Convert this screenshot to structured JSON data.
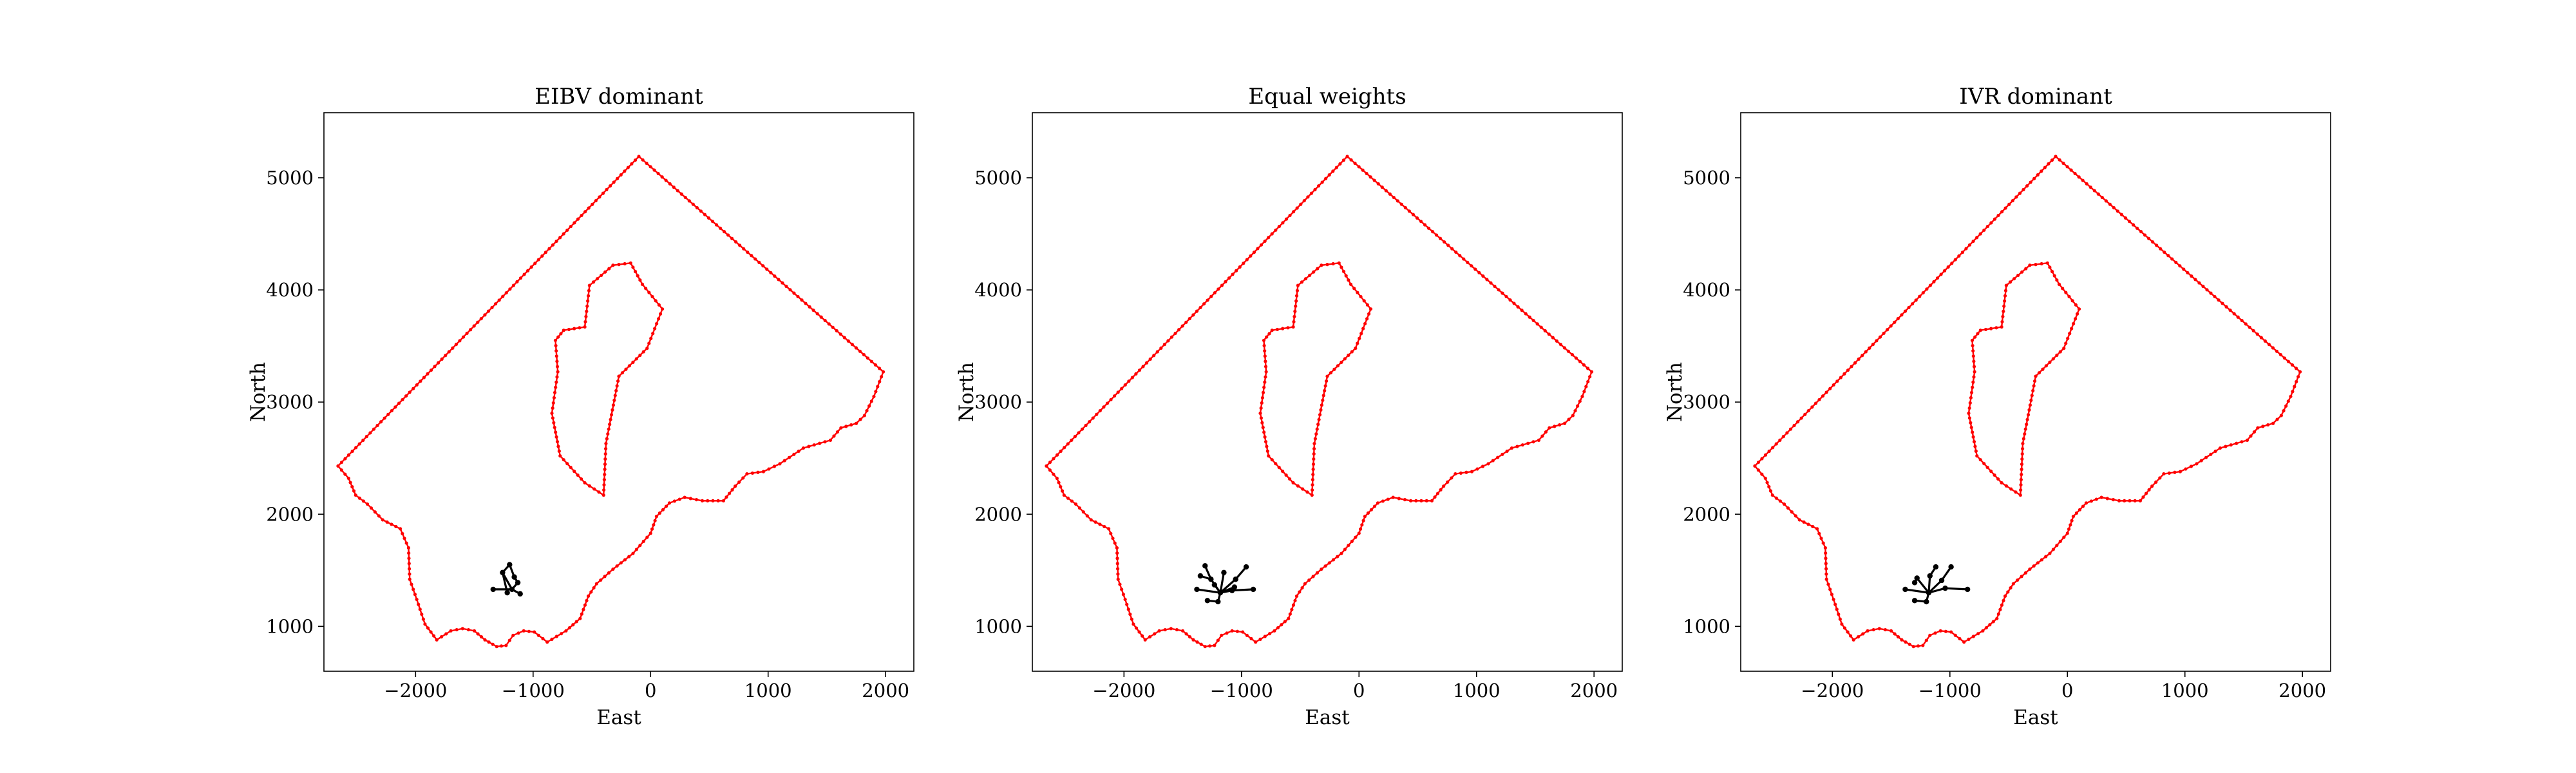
{
  "chart_data": [
    {
      "type": "scatter",
      "title": "EIBV dominant",
      "xlabel": "East",
      "ylabel": "North",
      "xlim": [
        -2780,
        2240
      ],
      "ylim": [
        600,
        5580
      ],
      "xticks": [
        -2000,
        -1000,
        0,
        1000,
        2000
      ],
      "xtick_labels": [
        "−2000",
        "−1000",
        "0",
        "1000",
        "2000"
      ],
      "yticks": [
        1000,
        2000,
        3000,
        4000,
        5000
      ],
      "ytick_labels": [
        "1000",
        "2000",
        "3000",
        "4000",
        "5000"
      ],
      "grid": false,
      "boundary_color": "#ff0000",
      "tree_color": "#000000",
      "outer_boundary": [
        [
          -100,
          5190
        ],
        [
          1980,
          3270
        ],
        [
          1900,
          3050
        ],
        [
          1820,
          2880
        ],
        [
          1750,
          2810
        ],
        [
          1620,
          2770
        ],
        [
          1530,
          2660
        ],
        [
          1300,
          2590
        ],
        [
          1100,
          2450
        ],
        [
          960,
          2380
        ],
        [
          820,
          2360
        ],
        [
          720,
          2250
        ],
        [
          620,
          2120
        ],
        [
          440,
          2120
        ],
        [
          290,
          2150
        ],
        [
          160,
          2100
        ],
        [
          50,
          1980
        ],
        [
          0,
          1830
        ],
        [
          -150,
          1650
        ],
        [
          -320,
          1510
        ],
        [
          -460,
          1380
        ],
        [
          -530,
          1270
        ],
        [
          -600,
          1070
        ],
        [
          -720,
          960
        ],
        [
          -880,
          860
        ],
        [
          -990,
          950
        ],
        [
          -1080,
          960
        ],
        [
          -1170,
          920
        ],
        [
          -1230,
          830
        ],
        [
          -1310,
          820
        ],
        [
          -1410,
          880
        ],
        [
          -1500,
          960
        ],
        [
          -1600,
          980
        ],
        [
          -1700,
          960
        ],
        [
          -1820,
          880
        ],
        [
          -1920,
          1020
        ],
        [
          -1990,
          1240
        ],
        [
          -2050,
          1420
        ],
        [
          -2060,
          1700
        ],
        [
          -2130,
          1870
        ],
        [
          -2280,
          1950
        ],
        [
          -2410,
          2090
        ],
        [
          -2510,
          2170
        ],
        [
          -2570,
          2320
        ],
        [
          -2660,
          2430
        ],
        [
          -100,
          5190
        ]
      ],
      "inner_boundary": [
        [
          -520,
          4040
        ],
        [
          -320,
          4220
        ],
        [
          -170,
          4240
        ],
        [
          -70,
          4050
        ],
        [
          100,
          3830
        ],
        [
          -30,
          3480
        ],
        [
          -270,
          3230
        ],
        [
          -380,
          2630
        ],
        [
          -400,
          2170
        ],
        [
          -560,
          2280
        ],
        [
          -770,
          2520
        ],
        [
          -840,
          2900
        ],
        [
          -790,
          3270
        ],
        [
          -810,
          3550
        ],
        [
          -740,
          3640
        ],
        [
          -560,
          3670
        ],
        [
          -520,
          4040
        ]
      ],
      "tree_nodes": [
        [
          -1180,
          1330
        ],
        [
          -1260,
          1480
        ],
        [
          -1200,
          1550
        ],
        [
          -1130,
          1390
        ],
        [
          -1110,
          1290
        ],
        [
          -1340,
          1330
        ],
        [
          -1220,
          1300
        ],
        [
          -1160,
          1440
        ]
      ],
      "tree_edges": [
        [
          0,
          1
        ],
        [
          1,
          2
        ],
        [
          0,
          3
        ],
        [
          0,
          4
        ],
        [
          5,
          0
        ],
        [
          1,
          6
        ],
        [
          2,
          7
        ],
        [
          3,
          7
        ]
      ]
    },
    {
      "type": "scatter",
      "title": "Equal weights",
      "xlabel": "East",
      "ylabel": "North",
      "xlim": [
        -2780,
        2240
      ],
      "ylim": [
        600,
        5580
      ],
      "xticks": [
        -2000,
        -1000,
        0,
        1000,
        2000
      ],
      "xtick_labels": [
        "−2000",
        "−1000",
        "0",
        "1000",
        "2000"
      ],
      "yticks": [
        1000,
        2000,
        3000,
        4000,
        5000
      ],
      "ytick_labels": [
        "1000",
        "2000",
        "3000",
        "4000",
        "5000"
      ],
      "grid": false,
      "boundary_color": "#ff0000",
      "tree_color": "#000000",
      "outer_boundary": [
        [
          -100,
          5190
        ],
        [
          1980,
          3270
        ],
        [
          1900,
          3050
        ],
        [
          1820,
          2880
        ],
        [
          1750,
          2810
        ],
        [
          1620,
          2770
        ],
        [
          1530,
          2660
        ],
        [
          1300,
          2590
        ],
        [
          1100,
          2450
        ],
        [
          960,
          2380
        ],
        [
          820,
          2360
        ],
        [
          720,
          2250
        ],
        [
          620,
          2120
        ],
        [
          440,
          2120
        ],
        [
          290,
          2150
        ],
        [
          160,
          2100
        ],
        [
          50,
          1980
        ],
        [
          0,
          1830
        ],
        [
          -150,
          1650
        ],
        [
          -320,
          1510
        ],
        [
          -460,
          1380
        ],
        [
          -530,
          1270
        ],
        [
          -600,
          1070
        ],
        [
          -720,
          960
        ],
        [
          -880,
          860
        ],
        [
          -990,
          950
        ],
        [
          -1080,
          960
        ],
        [
          -1170,
          920
        ],
        [
          -1230,
          830
        ],
        [
          -1310,
          820
        ],
        [
          -1410,
          880
        ],
        [
          -1500,
          960
        ],
        [
          -1600,
          980
        ],
        [
          -1700,
          960
        ],
        [
          -1820,
          880
        ],
        [
          -1920,
          1020
        ],
        [
          -1990,
          1240
        ],
        [
          -2050,
          1420
        ],
        [
          -2060,
          1700
        ],
        [
          -2130,
          1870
        ],
        [
          -2280,
          1950
        ],
        [
          -2410,
          2090
        ],
        [
          -2510,
          2170
        ],
        [
          -2570,
          2320
        ],
        [
          -2660,
          2430
        ],
        [
          -100,
          5190
        ]
      ],
      "inner_boundary": [
        [
          -520,
          4040
        ],
        [
          -320,
          4220
        ],
        [
          -170,
          4240
        ],
        [
          -70,
          4050
        ],
        [
          100,
          3830
        ],
        [
          -30,
          3480
        ],
        [
          -270,
          3230
        ],
        [
          -380,
          2630
        ],
        [
          -400,
          2170
        ],
        [
          -560,
          2280
        ],
        [
          -770,
          2520
        ],
        [
          -840,
          2900
        ],
        [
          -790,
          3270
        ],
        [
          -810,
          3550
        ],
        [
          -740,
          3640
        ],
        [
          -560,
          3670
        ],
        [
          -520,
          4040
        ]
      ],
      "tree_nodes": [
        [
          -1180,
          1300
        ],
        [
          -1380,
          1330
        ],
        [
          -1150,
          1480
        ],
        [
          -1260,
          1420
        ],
        [
          -1050,
          1420
        ],
        [
          -1080,
          1320
        ],
        [
          -900,
          1330
        ],
        [
          -1200,
          1220
        ],
        [
          -1290,
          1230
        ],
        [
          -1350,
          1450
        ],
        [
          -1310,
          1540
        ],
        [
          -960,
          1530
        ],
        [
          -1060,
          1350
        ],
        [
          -1230,
          1370
        ]
      ],
      "tree_edges": [
        [
          1,
          0
        ],
        [
          0,
          2
        ],
        [
          0,
          3
        ],
        [
          0,
          4
        ],
        [
          0,
          5
        ],
        [
          5,
          6
        ],
        [
          0,
          7
        ],
        [
          7,
          8
        ],
        [
          3,
          9
        ],
        [
          3,
          10
        ],
        [
          4,
          11
        ],
        [
          0,
          12
        ],
        [
          0,
          13
        ]
      ]
    },
    {
      "type": "scatter",
      "title": "IVR dominant",
      "xlabel": "East",
      "ylabel": "North",
      "xlim": [
        -2780,
        2240
      ],
      "ylim": [
        600,
        5580
      ],
      "xticks": [
        -2000,
        -1000,
        0,
        1000,
        2000
      ],
      "xtick_labels": [
        "−2000",
        "−1000",
        "0",
        "1000",
        "2000"
      ],
      "yticks": [
        1000,
        2000,
        3000,
        4000,
        5000
      ],
      "ytick_labels": [
        "1000",
        "2000",
        "3000",
        "4000",
        "5000"
      ],
      "grid": false,
      "boundary_color": "#ff0000",
      "tree_color": "#000000",
      "outer_boundary": [
        [
          -100,
          5190
        ],
        [
          1980,
          3270
        ],
        [
          1900,
          3050
        ],
        [
          1820,
          2880
        ],
        [
          1750,
          2810
        ],
        [
          1620,
          2770
        ],
        [
          1530,
          2660
        ],
        [
          1300,
          2590
        ],
        [
          1100,
          2450
        ],
        [
          960,
          2380
        ],
        [
          820,
          2360
        ],
        [
          720,
          2250
        ],
        [
          620,
          2120
        ],
        [
          440,
          2120
        ],
        [
          290,
          2150
        ],
        [
          160,
          2100
        ],
        [
          50,
          1980
        ],
        [
          0,
          1830
        ],
        [
          -150,
          1650
        ],
        [
          -320,
          1510
        ],
        [
          -460,
          1380
        ],
        [
          -530,
          1270
        ],
        [
          -600,
          1070
        ],
        [
          -720,
          960
        ],
        [
          -880,
          860
        ],
        [
          -990,
          950
        ],
        [
          -1080,
          960
        ],
        [
          -1170,
          920
        ],
        [
          -1230,
          830
        ],
        [
          -1310,
          820
        ],
        [
          -1410,
          880
        ],
        [
          -1500,
          960
        ],
        [
          -1600,
          980
        ],
        [
          -1700,
          960
        ],
        [
          -1820,
          880
        ],
        [
          -1920,
          1020
        ],
        [
          -1990,
          1240
        ],
        [
          -2050,
          1420
        ],
        [
          -2060,
          1700
        ],
        [
          -2130,
          1870
        ],
        [
          -2280,
          1950
        ],
        [
          -2410,
          2090
        ],
        [
          -2510,
          2170
        ],
        [
          -2570,
          2320
        ],
        [
          -2660,
          2430
        ],
        [
          -100,
          5190
        ]
      ],
      "inner_boundary": [
        [
          -520,
          4040
        ],
        [
          -320,
          4220
        ],
        [
          -170,
          4240
        ],
        [
          -70,
          4050
        ],
        [
          100,
          3830
        ],
        [
          -30,
          3480
        ],
        [
          -270,
          3230
        ],
        [
          -380,
          2630
        ],
        [
          -400,
          2170
        ],
        [
          -560,
          2280
        ],
        [
          -770,
          2520
        ],
        [
          -840,
          2900
        ],
        [
          -790,
          3270
        ],
        [
          -810,
          3550
        ],
        [
          -740,
          3640
        ],
        [
          -560,
          3670
        ],
        [
          -520,
          4040
        ]
      ],
      "tree_nodes": [
        [
          -1180,
          1300
        ],
        [
          -1380,
          1330
        ],
        [
          -1170,
          1450
        ],
        [
          -1280,
          1430
        ],
        [
          -1070,
          1410
        ],
        [
          -1040,
          1340
        ],
        [
          -850,
          1330
        ],
        [
          -1200,
          1220
        ],
        [
          -1300,
          1230
        ],
        [
          -1120,
          1530
        ],
        [
          -990,
          1530
        ],
        [
          -1300,
          1390
        ]
      ],
      "tree_edges": [
        [
          1,
          0
        ],
        [
          0,
          2
        ],
        [
          0,
          3
        ],
        [
          0,
          4
        ],
        [
          0,
          5
        ],
        [
          5,
          6
        ],
        [
          0,
          7
        ],
        [
          7,
          8
        ],
        [
          2,
          9
        ],
        [
          4,
          10
        ],
        [
          3,
          11
        ]
      ]
    }
  ]
}
